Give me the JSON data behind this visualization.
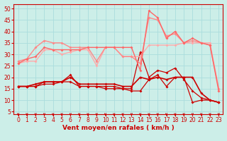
{
  "background_color": "#cceee8",
  "grid_color": "#aadddd",
  "xlabel": "Vent moyen/en rafales ( km/h )",
  "xlabel_color": "#cc0000",
  "ylabel_ticks": [
    5,
    10,
    15,
    20,
    25,
    30,
    35,
    40,
    45,
    50
  ],
  "xlim": [
    -0.5,
    23.5
  ],
  "ylim": [
    4,
    52
  ],
  "x": [
    0,
    1,
    2,
    3,
    4,
    5,
    6,
    7,
    8,
    9,
    10,
    11,
    12,
    13,
    14,
    15,
    16,
    17,
    18,
    19,
    20,
    21,
    22,
    23
  ],
  "series": [
    {
      "y": [
        16,
        16,
        16,
        17,
        17,
        18,
        18,
        16,
        16,
        16,
        15,
        15,
        15,
        14,
        14,
        19,
        21,
        16,
        20,
        20,
        9,
        10,
        10,
        9
      ],
      "color": "#cc0000",
      "lw": 0.9,
      "marker": "D",
      "ms": 2.0
    },
    {
      "y": [
        16,
        16,
        17,
        18,
        18,
        18,
        20,
        17,
        17,
        17,
        17,
        17,
        16,
        16,
        20,
        19,
        20,
        19,
        20,
        20,
        20,
        13,
        10,
        9
      ],
      "color": "#cc0000",
      "lw": 1.2,
      "marker": "D",
      "ms": 2.0
    },
    {
      "y": [
        16,
        16,
        16,
        18,
        18,
        18,
        21,
        16,
        16,
        16,
        16,
        16,
        15,
        15,
        31,
        20,
        23,
        22,
        24,
        19,
        14,
        11,
        10,
        9
      ],
      "color": "#cc0000",
      "lw": 0.9,
      "marker": "D",
      "ms": 2.0
    },
    {
      "y": [
        26,
        27,
        27,
        32,
        32,
        30,
        31,
        32,
        32,
        25,
        33,
        33,
        29,
        29,
        29,
        34,
        34,
        34,
        34,
        35,
        35,
        35,
        35,
        15
      ],
      "color": "#ffaaaa",
      "lw": 1.0,
      "marker": "D",
      "ms": 2.0
    },
    {
      "y": [
        27,
        28,
        33,
        36,
        35,
        35,
        33,
        33,
        33,
        27,
        33,
        33,
        29,
        29,
        26,
        46,
        45,
        38,
        39,
        35,
        36,
        35,
        34,
        15
      ],
      "color": "#ff8888",
      "lw": 1.0,
      "marker": "D",
      "ms": 2.0
    },
    {
      "y": [
        26,
        28,
        29,
        33,
        32,
        32,
        32,
        32,
        33,
        33,
        33,
        33,
        33,
        33,
        23,
        49,
        46,
        37,
        40,
        35,
        37,
        35,
        34,
        14
      ],
      "color": "#ff6666",
      "lw": 1.0,
      "marker": "D",
      "ms": 2.0
    }
  ],
  "tick_label_color": "#cc0000",
  "tick_fontsize": 5.5,
  "xlabel_fontsize": 6.5,
  "arrow_color": "#cc0000"
}
